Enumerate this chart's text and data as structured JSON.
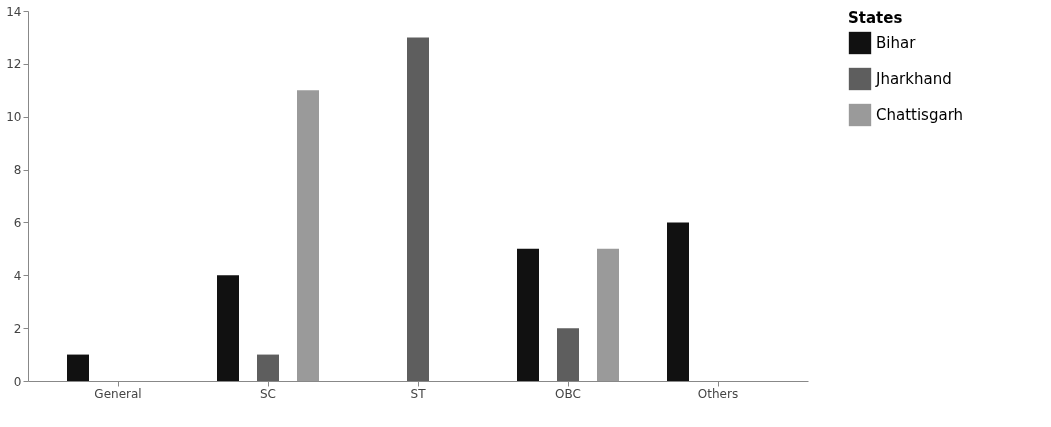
{
  "chart_data": {
    "type": "bar",
    "categories": [
      "General",
      "SC",
      "ST",
      "OBC",
      "Others"
    ],
    "series": [
      {
        "name": "Bihar",
        "color": "#111111",
        "values": [
          1,
          4,
          0,
          5,
          6
        ]
      },
      {
        "name": "Jharkhand",
        "color": "#5e5e5e",
        "values": [
          0,
          1,
          13,
          2,
          0
        ]
      },
      {
        "name": "Chattisgarh",
        "color": "#9a9a9a",
        "values": [
          0,
          11,
          0,
          5,
          0
        ]
      }
    ],
    "legend_title": "States",
    "legend": "right",
    "ylim": [
      0,
      14
    ],
    "yticks": [
      0,
      2,
      4,
      6,
      8,
      10,
      12,
      14
    ],
    "grid": false
  }
}
